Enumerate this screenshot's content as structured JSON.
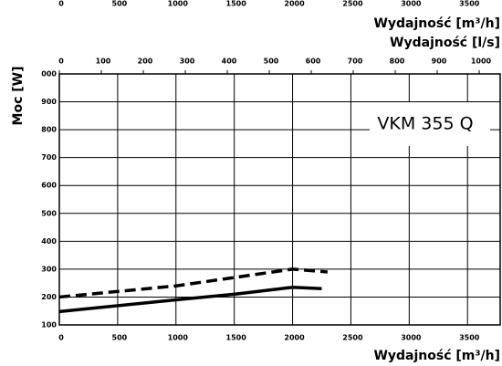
{
  "chart_data": {
    "type": "line",
    "annotation": "VKM 355 Q",
    "ylabel": "Moc [W]",
    "xlabel": "Wydajność [m³/h]",
    "xlim": [
      0,
      3780
    ],
    "xticks": [
      0,
      500,
      1000,
      1500,
      2000,
      2500,
      3000,
      3500
    ],
    "ylim": [
      100,
      1000
    ],
    "yticks": [
      100,
      200,
      300,
      400,
      500,
      600,
      700,
      800,
      900,
      {
        "value": 1000,
        "label": "000"
      }
    ],
    "grid": true,
    "top_axes": [
      {
        "label": "Wydajność [l/s]",
        "xlim": [
          0,
          1050
        ],
        "xticks": [
          0,
          100,
          200,
          300,
          400,
          500,
          600,
          700,
          800,
          900,
          1000
        ]
      },
      {
        "label": "Wydajność [m³/h]",
        "xlim": [
          0,
          3780
        ],
        "xticks": [
          0,
          500,
          1000,
          1500,
          2000,
          2500,
          3000,
          3500
        ]
      }
    ],
    "series": [
      {
        "color": "#000000",
        "dash": false,
        "x": [
          0,
          1000,
          1500,
          2000,
          2250
        ],
        "values": [
          148,
          190,
          210,
          235,
          230
        ]
      },
      {
        "color": "#000000",
        "dash": true,
        "x": [
          0,
          1000,
          2000,
          2300
        ],
        "values": [
          200,
          240,
          300,
          290
        ]
      }
    ]
  }
}
